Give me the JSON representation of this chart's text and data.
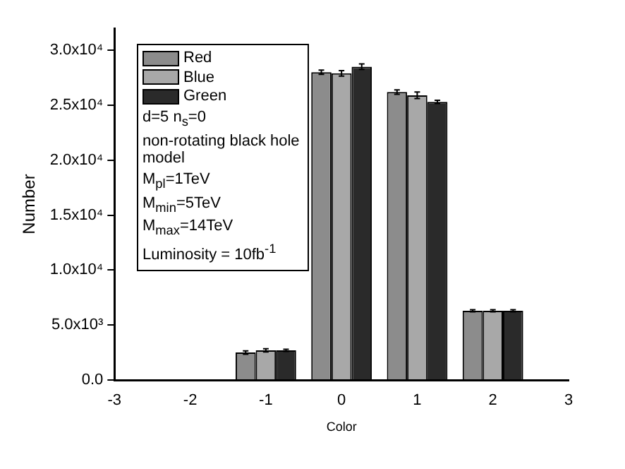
{
  "chart_data": {
    "type": "bar",
    "xlabel": "Color",
    "ylabel": "Number",
    "x": [
      -1,
      0,
      1,
      2
    ],
    "series": [
      {
        "name": "Red",
        "color": "#8c8c8c",
        "values": [
          2500,
          28000,
          26200,
          6300
        ],
        "errors": [
          150,
          200,
          200,
          100
        ]
      },
      {
        "name": "Blue",
        "color": "#a8a8a8",
        "values": [
          2700,
          27900,
          25900,
          6300
        ],
        "errors": [
          150,
          250,
          300,
          100
        ]
      },
      {
        "name": "Green",
        "color": "#2a2a2a",
        "values": [
          2700,
          28500,
          25300,
          6300
        ],
        "errors": [
          100,
          250,
          150,
          100
        ]
      }
    ],
    "xlim": [
      -3,
      3
    ],
    "xticks": [
      -3,
      -2,
      -1,
      0,
      1,
      2,
      3
    ],
    "ylim": [
      0,
      32000
    ],
    "yticks": [
      {
        "value": 0,
        "label": "0.0"
      },
      {
        "value": 5000,
        "label": "5.0x10³"
      },
      {
        "value": 10000,
        "label": "1.0x10⁴"
      },
      {
        "value": 15000,
        "label": "1.5x10⁴"
      },
      {
        "value": 20000,
        "label": "2.0x10⁴"
      },
      {
        "value": 25000,
        "label": "2.5x10⁴"
      },
      {
        "value": 30000,
        "label": "3.0x10⁴"
      }
    ],
    "legend": "top left",
    "grid": false,
    "annotations": [
      "d=5 n$_{s}$=0",
      "non-rotating black hole model",
      "M$_{pl}$=1TeV",
      "M$_{min}$=5TeV",
      "M$_{max}$=14TeV",
      "Luminosity = 10fb$^{-1}$"
    ]
  }
}
